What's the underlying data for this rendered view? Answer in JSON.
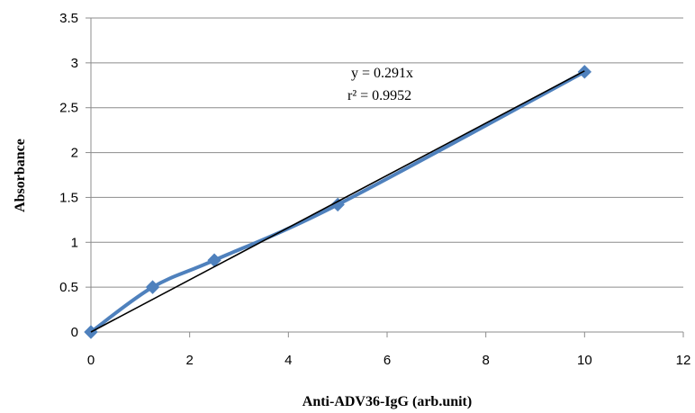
{
  "chart_data": {
    "type": "scatter",
    "title": "",
    "xlabel": "Anti-ADV36-IgG (arb.unit)",
    "ylabel": "Absorbance",
    "xlim": [
      0,
      12
    ],
    "ylim": [
      0,
      3.5
    ],
    "x_ticks": [
      "0",
      "2",
      "4",
      "6",
      "8",
      "10",
      "12"
    ],
    "y_ticks": [
      "0",
      "0.5",
      "1",
      "1.5",
      "2",
      "2.5",
      "3",
      "3.5"
    ],
    "grid": "horizontal",
    "legend": "none",
    "series": [
      {
        "x": [
          0,
          1.25,
          2.5,
          5,
          10
        ],
        "y": [
          0,
          0.5,
          0.8,
          1.42,
          2.9
        ],
        "color": "#4F81BD",
        "line": "smoothed",
        "marker": "diamond"
      }
    ],
    "trendline": {
      "type": "linear",
      "slope": 0.291,
      "intercept": 0,
      "color": "#000000",
      "equation": "y = 0.291x",
      "r_squared": "r² = 0.9952"
    }
  }
}
